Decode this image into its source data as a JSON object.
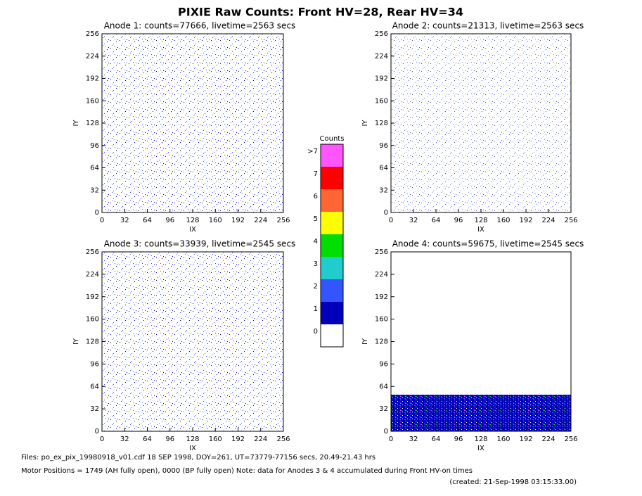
{
  "title": "PIXIE Raw Counts:  Front HV=28, Rear HV=34",
  "chart_data": [
    {
      "type": "heatmap",
      "title": "Anode 1: counts=77666, livetime=2563 secs",
      "xlabel": "IX",
      "ylabel": "IY",
      "xlim": [
        0,
        256
      ],
      "ylim": [
        0,
        256
      ],
      "xticks": [
        0,
        32,
        64,
        96,
        128,
        160,
        192,
        224,
        256
      ],
      "yticks": [
        0,
        32,
        64,
        96,
        128,
        160,
        192,
        224,
        256
      ]
    },
    {
      "type": "heatmap",
      "title": "Anode 2: counts=21313, livetime=2563 secs",
      "xlabel": "IX",
      "ylabel": "IY",
      "xlim": [
        0,
        256
      ],
      "ylim": [
        0,
        256
      ],
      "xticks": [
        0,
        32,
        64,
        96,
        128,
        160,
        192,
        224,
        256
      ],
      "yticks": [
        0,
        32,
        64,
        96,
        128,
        160,
        192,
        224,
        256
      ]
    },
    {
      "type": "heatmap",
      "title": "Anode 3: counts=33939, livetime=2545 secs",
      "xlabel": "IX",
      "ylabel": "IY",
      "xlim": [
        0,
        256
      ],
      "ylim": [
        0,
        256
      ],
      "xticks": [
        0,
        32,
        64,
        96,
        128,
        160,
        192,
        224,
        256
      ],
      "yticks": [
        0,
        32,
        64,
        96,
        128,
        160,
        192,
        224,
        256
      ]
    },
    {
      "type": "heatmap",
      "title": "Anode 4: counts=59675, livetime=2545 secs",
      "xlabel": "IX",
      "ylabel": "IY",
      "xlim": [
        0,
        256
      ],
      "ylim": [
        0,
        256
      ],
      "xticks": [
        0,
        32,
        64,
        96,
        128,
        160,
        192,
        224,
        256
      ],
      "yticks": [
        0,
        32,
        64,
        96,
        128,
        160,
        192,
        224,
        256
      ]
    }
  ],
  "colorbar": {
    "title": "Counts",
    "ticks": [
      0,
      1,
      2,
      3,
      4,
      5,
      6,
      7,
      {
        "value": 8,
        "label": ">7"
      }
    ],
    "colors": [
      "#ffffff",
      "#0000bb",
      "#3355ff",
      "#22cccc",
      "#00dd00",
      "#ffff00",
      "#ff6633",
      "#ff0000",
      "#ff55ff"
    ]
  },
  "footer": [
    "Files: po_ex_pix_19980918_v01.cdf     18 SEP 1998, DOY=261, UT=73779-77156 secs, 20.49-21.43 hrs",
    "Motor Positions = 1749 (AH fully open), 0000 (BP fully open)    Note: data for Anodes 3 & 4 accumulated during Front HV-on times",
    "(created: 21-Sep-1998 03:15:33.00)"
  ]
}
